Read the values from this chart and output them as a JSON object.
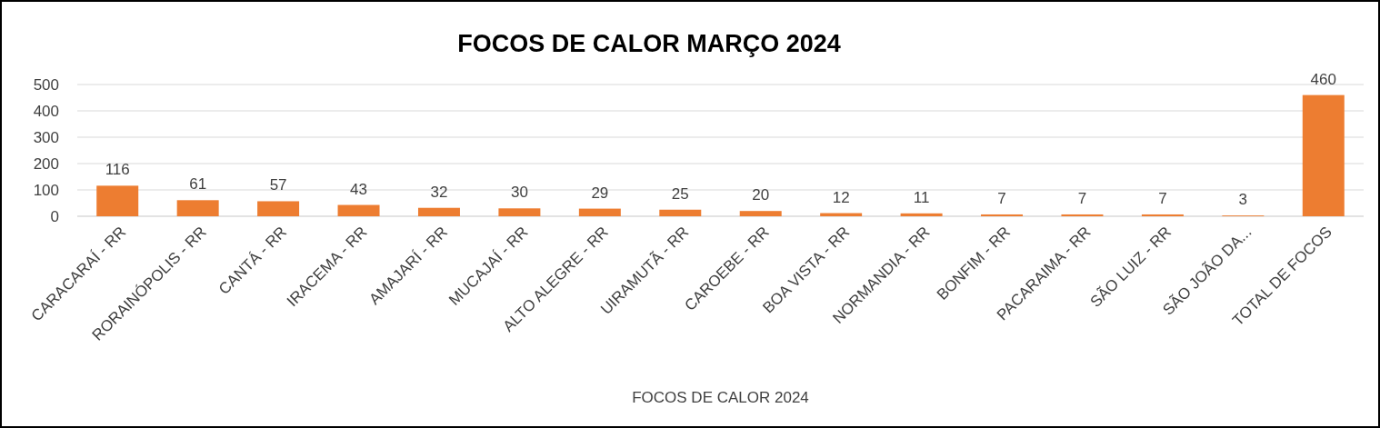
{
  "chart_data": {
    "type": "bar",
    "title": "FOCOS DE CALOR MARÇO 2024",
    "xlabel": "FOCOS DE CALOR 2024",
    "categories": [
      "CARACARAÍ - RR",
      "RORAINÓPOLIS - RR",
      "CANTÁ - RR",
      "IRACEMA - RR",
      "AMAJARÍ - RR",
      "MUCAJAÍ - RR",
      "ALTO ALEGRE - RR",
      "UIRAMUTÃ - RR",
      "CAROEBE - RR",
      "BOA VISTA - RR",
      "NORMANDIA - RR",
      "BONFIM - RR",
      "PACARAIMA - RR",
      "SÃO LUIZ - RR",
      "SÃO JOÃO DA...",
      "TOTAL DE FOCOS"
    ],
    "values": [
      116,
      61,
      57,
      43,
      32,
      30,
      29,
      25,
      20,
      12,
      11,
      7,
      7,
      7,
      3,
      460
    ],
    "color": "#ed7d31",
    "ylim": [
      0,
      500
    ],
    "yticks": [
      0,
      100,
      200,
      300,
      400,
      500
    ],
    "grid": "y",
    "data_labels": true
  }
}
